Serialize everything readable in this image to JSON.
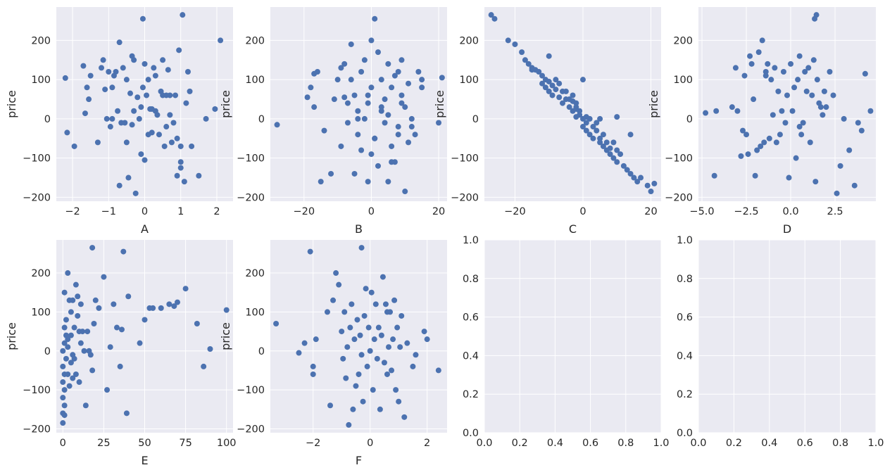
{
  "chart_data": [
    {
      "type": "scatter",
      "xlabel": "A",
      "ylabel": "price",
      "xlim": [
        -2.45,
        2.45
      ],
      "ylim": [
        -210,
        285
      ],
      "xticks": [
        -2,
        -1,
        0,
        1,
        2
      ],
      "yticks": [
        -200,
        -100,
        0,
        100,
        200
      ],
      "x": [
        -2.2,
        -2.15,
        -1.95,
        -1.7,
        -1.65,
        -1.6,
        -1.55,
        -1.5,
        -1.3,
        -1.2,
        -1.15,
        -1.1,
        -1.05,
        -1.0,
        -0.95,
        -0.9,
        -0.85,
        -0.8,
        -0.75,
        -0.7,
        -0.7,
        -0.65,
        -0.6,
        -0.55,
        -0.5,
        -0.45,
        -0.4,
        -0.35,
        -0.35,
        -0.3,
        -0.3,
        -0.25,
        -0.2,
        -0.15,
        -0.1,
        -0.05,
        -0.05,
        0.0,
        0.05,
        0.1,
        0.1,
        0.15,
        0.2,
        0.25,
        0.3,
        0.35,
        0.4,
        0.45,
        0.5,
        0.55,
        0.6,
        0.6,
        0.65,
        0.7,
        0.7,
        0.75,
        0.8,
        0.85,
        0.9,
        0.95,
        1.0,
        1.0,
        1.05,
        1.1,
        1.15,
        1.2,
        1.25,
        1.3,
        1.5,
        1.7,
        1.95,
        2.1,
        0.0,
        -0.1,
        0.2,
        -0.5,
        0.5,
        0.9,
        1.0,
        -0.9,
        0.3
      ],
      "y": [
        104,
        -35,
        -70,
        135,
        14,
        80,
        50,
        110,
        -60,
        130,
        150,
        75,
        0,
        120,
        -20,
        80,
        110,
        120,
        20,
        -170,
        195,
        -10,
        130,
        -10,
        100,
        -150,
        65,
        160,
        -15,
        20,
        150,
        -190,
        55,
        0,
        -90,
        80,
        255,
        -105,
        60,
        100,
        -40,
        25,
        25,
        130,
        110,
        10,
        -40,
        70,
        60,
        -70,
        60,
        -20,
        125,
        10,
        60,
        -60,
        -10,
        60,
        -145,
        175,
        -70,
        -110,
        265,
        -160,
        40,
        120,
        70,
        -70,
        -145,
        0,
        25,
        200,
        140,
        30,
        -35,
        -60,
        150,
        -50,
        -125,
        0,
        20
      ]
    },
    {
      "type": "scatter",
      "xlabel": "B",
      "ylabel": "price",
      "xlim": [
        -30,
        22.5
      ],
      "ylim": [
        -210,
        285
      ],
      "xticks": [
        -20,
        0,
        20
      ],
      "yticks": [
        -200,
        -100,
        0,
        100,
        200
      ],
      "x": [
        -28,
        -19,
        -18,
        -17,
        -16,
        -15,
        -14,
        -12,
        -11,
        -10,
        -9,
        -9,
        -8,
        -7,
        -7,
        -6,
        -6,
        -5,
        -5,
        -4,
        -4,
        -3,
        -3,
        -2,
        -2,
        -1,
        -1,
        0,
        0,
        1,
        1,
        2,
        2,
        3,
        3,
        4,
        4,
        5,
        5,
        6,
        6,
        7,
        7,
        8,
        8,
        9,
        9,
        10,
        10,
        11,
        11,
        12,
        13,
        14,
        15,
        15,
        20,
        21,
        1,
        -4,
        3,
        6,
        9,
        -8,
        0,
        5,
        -17,
        12,
        -1,
        8
      ],
      "y": [
        -15,
        55,
        80,
        30,
        120,
        -160,
        -30,
        -140,
        50,
        100,
        130,
        -70,
        140,
        40,
        -10,
        190,
        100,
        -140,
        60,
        -40,
        20,
        120,
        -80,
        150,
        0,
        40,
        -160,
        200,
        80,
        255,
        -50,
        170,
        -120,
        20,
        100,
        -10,
        50,
        -160,
        140,
        80,
        -70,
        110,
        -110,
        120,
        -20,
        150,
        60,
        -185,
        30,
        90,
        -60,
        0,
        -40,
        120,
        80,
        100,
        -10,
        105,
        -50,
        0,
        30,
        -110,
        40,
        55,
        -90,
        10,
        115,
        -20,
        60,
        -40
      ]
    },
    {
      "type": "scatter",
      "xlabel": "C",
      "ylabel": "price",
      "xlim": [
        -29,
        23
      ],
      "ylim": [
        -210,
        285
      ],
      "xticks": [
        -20,
        0,
        20
      ],
      "yticks": [
        -200,
        -100,
        0,
        100,
        200
      ],
      "x": [
        -27,
        -26,
        -22,
        -20,
        -18,
        -17,
        -16,
        -15,
        -15,
        -14,
        -13,
        -12,
        -12,
        -11,
        -11,
        -10,
        -10,
        -9,
        -9,
        -8,
        -8,
        -7,
        -7,
        -6,
        -6,
        -5,
        -5,
        -4,
        -4,
        -3,
        -3,
        -3,
        -2,
        -2,
        -2,
        -1,
        -1,
        0,
        0,
        1,
        1,
        1,
        2,
        2,
        3,
        3,
        4,
        4,
        5,
        5,
        6,
        6,
        7,
        7,
        8,
        8,
        9,
        9,
        10,
        10,
        11,
        12,
        13,
        14,
        15,
        16,
        17,
        19,
        20,
        21,
        -10,
        -2,
        0,
        5,
        10,
        14
      ],
      "y": [
        265,
        255,
        200,
        190,
        170,
        150,
        140,
        130,
        125,
        125,
        120,
        110,
        90,
        100,
        80,
        95,
        70,
        85,
        60,
        100,
        75,
        90,
        55,
        70,
        40,
        70,
        50,
        50,
        30,
        45,
        20,
        60,
        25,
        5,
        40,
        20,
        10,
        0,
        -20,
        -10,
        -30,
        5,
        -40,
        0,
        -20,
        -50,
        -10,
        -30,
        -50,
        -60,
        -40,
        -70,
        -80,
        -60,
        -75,
        -90,
        -60,
        -100,
        -80,
        -110,
        -90,
        -120,
        -130,
        -140,
        -150,
        -160,
        -150,
        -170,
        -185,
        -165,
        160,
        30,
        100,
        0,
        5,
        -40
      ]
    },
    {
      "type": "scatter",
      "xlabel": "D",
      "ylabel": "price",
      "xlim": [
        -5.2,
        4.8
      ],
      "ylim": [
        -210,
        285
      ],
      "xticks": [
        -5.0,
        -2.5,
        0.0,
        2.5
      ],
      "yticks": [
        -200,
        -100,
        0,
        100,
        200
      ],
      "x": [
        -4.8,
        -4.3,
        -4.2,
        -3.3,
        -3.1,
        -3.0,
        -2.8,
        -2.7,
        -2.6,
        -2.5,
        -2.4,
        -2.3,
        -2.2,
        -2.1,
        -2.0,
        -1.9,
        -1.8,
        -1.7,
        -1.6,
        -1.5,
        -1.4,
        -1.3,
        -1.2,
        -1.1,
        -1.0,
        -0.9,
        -0.8,
        -0.7,
        -0.6,
        -0.5,
        -0.4,
        -0.3,
        -0.2,
        -0.1,
        0.0,
        0.1,
        0.2,
        0.3,
        0.4,
        0.5,
        0.6,
        0.7,
        0.8,
        0.9,
        1.0,
        1.1,
        1.2,
        1.3,
        1.4,
        1.5,
        1.6,
        1.7,
        1.8,
        1.9,
        2.0,
        2.2,
        2.4,
        2.6,
        2.8,
        3.0,
        3.3,
        3.6,
        3.8,
        4.0,
        4.2,
        4.5,
        -1.4,
        0.5,
        1.35,
        1.45
      ],
      "y": [
        15,
        -145,
        20,
        30,
        130,
        20,
        -95,
        -30,
        110,
        -40,
        -90,
        160,
        140,
        50,
        -145,
        -80,
        170,
        -70,
        200,
        -60,
        120,
        140,
        -50,
        100,
        10,
        130,
        -60,
        70,
        -40,
        20,
        120,
        -10,
        60,
        -150,
        140,
        20,
        80,
        -100,
        100,
        160,
        -40,
        -10,
        120,
        70,
        130,
        -60,
        60,
        150,
        -160,
        100,
        40,
        30,
        10,
        70,
        30,
        120,
        60,
        -190,
        -120,
        0,
        -80,
        -170,
        -10,
        -30,
        115,
        20,
        110,
        -20,
        255,
        265
      ]
    },
    {
      "type": "scatter",
      "xlabel": "E",
      "ylabel": "price",
      "xlim": [
        -4,
        104
      ],
      "ylim": [
        -210,
        285
      ],
      "xticks": [
        0,
        25,
        50,
        75,
        100
      ],
      "yticks": [
        -200,
        -100,
        0,
        100,
        200
      ],
      "x": [
        0,
        0,
        0,
        0,
        0,
        0,
        1,
        1,
        1,
        1,
        1,
        1,
        2,
        2,
        2,
        3,
        3,
        3,
        4,
        4,
        5,
        5,
        5,
        6,
        6,
        7,
        7,
        8,
        8,
        9,
        9,
        10,
        10,
        11,
        11,
        12,
        13,
        14,
        15,
        16,
        17,
        18,
        19,
        20,
        22,
        25,
        27,
        29,
        31,
        33,
        35,
        37,
        39,
        40,
        47,
        50,
        53,
        55,
        60,
        65,
        68,
        70,
        75,
        82,
        90,
        100,
        1,
        3,
        6,
        18,
        36,
        86
      ],
      "y": [
        -185,
        -160,
        -120,
        -80,
        -40,
        0,
        150,
        60,
        20,
        -60,
        -100,
        -140,
        80,
        40,
        -20,
        200,
        10,
        -60,
        130,
        -90,
        100,
        40,
        -30,
        130,
        -70,
        60,
        -20,
        170,
        -60,
        140,
        90,
        50,
        -80,
        120,
        20,
        50,
        0,
        -140,
        50,
        0,
        -10,
        265,
        70,
        130,
        110,
        190,
        -100,
        10,
        120,
        60,
        -40,
        255,
        -160,
        140,
        20,
        80,
        110,
        110,
        110,
        120,
        115,
        125,
        160,
        70,
        5,
        105,
        -165,
        30,
        -10,
        -50,
        55,
        -40
      ]
    },
    {
      "type": "scatter",
      "xlabel": "F",
      "ylabel": "price",
      "xlim": [
        -3.5,
        2.7
      ],
      "ylim": [
        -210,
        285
      ],
      "xticks": [
        -2,
        0,
        2
      ],
      "yticks": [
        -200,
        -100,
        0,
        100,
        200
      ],
      "x": [
        -3.3,
        -2.5,
        -2.3,
        -2.1,
        -2.0,
        -1.9,
        -1.5,
        -1.4,
        -1.3,
        -1.2,
        -1.1,
        -1.0,
        -0.95,
        -0.9,
        -0.85,
        -0.8,
        -0.75,
        -0.7,
        -0.65,
        -0.6,
        -0.55,
        -0.5,
        -0.45,
        -0.4,
        -0.35,
        -0.3,
        -0.25,
        -0.2,
        -0.15,
        -0.1,
        -0.05,
        0.0,
        0.05,
        0.1,
        0.15,
        0.2,
        0.25,
        0.3,
        0.35,
        0.4,
        0.45,
        0.5,
        0.55,
        0.6,
        0.65,
        0.7,
        0.75,
        0.8,
        0.85,
        0.9,
        0.95,
        1.0,
        1.05,
        1.1,
        1.2,
        1.3,
        1.5,
        1.6,
        1.9,
        2.0,
        2.4,
        -0.3,
        0.6,
        -2.0
      ],
      "y": [
        70,
        -5,
        20,
        255,
        -60,
        30,
        100,
        -140,
        130,
        200,
        170,
        50,
        -20,
        100,
        -70,
        10,
        -190,
        60,
        120,
        -150,
        30,
        -90,
        80,
        -60,
        40,
        -10,
        -130,
        90,
        160,
        -40,
        60,
        0,
        150,
        -100,
        30,
        120,
        -20,
        60,
        -150,
        40,
        190,
        -30,
        120,
        -60,
        10,
        100,
        -50,
        30,
        130,
        -100,
        60,
        -130,
        10,
        90,
        -170,
        20,
        -40,
        -10,
        50,
        30,
        -50,
        265,
        100,
        -40
      ]
    },
    {
      "type": "scatter",
      "xlabel": "",
      "ylabel": "",
      "xlim": [
        0.0,
        1.0
      ],
      "ylim": [
        0.0,
        1.0
      ],
      "xticks": [
        0.0,
        0.2,
        0.4,
        0.6,
        0.8,
        1.0
      ],
      "yticks": [
        0.0,
        0.2,
        0.4,
        0.6,
        0.8,
        1.0
      ],
      "x": [],
      "y": []
    },
    {
      "type": "scatter",
      "xlabel": "",
      "ylabel": "",
      "xlim": [
        0.0,
        1.0
      ],
      "ylim": [
        0.0,
        1.0
      ],
      "xticks": [
        0.0,
        0.2,
        0.4,
        0.6,
        0.8,
        1.0
      ],
      "yticks": [
        0.0,
        0.2,
        0.4,
        0.6,
        0.8,
        1.0
      ],
      "x": [],
      "y": []
    }
  ],
  "style": {
    "axes_facecolor": "#EAEAF2",
    "grid_color": "#FFFFFF",
    "marker_color": "#4C72B0",
    "text_color": "#262626"
  }
}
